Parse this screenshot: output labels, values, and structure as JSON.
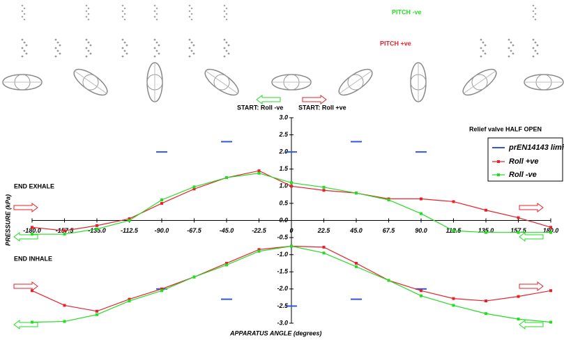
{
  "chart_data": {
    "type": "line",
    "annotations": {
      "pitch_neg": "PITCH -ve",
      "pitch_pos": "PITCH +ve",
      "start_neg": "START: Roll -ve",
      "start_pos": "START: Roll +ve",
      "valve": "Relief valve HALF OPEN",
      "end_exhale": "END EXHALE",
      "end_inhale": "END INHALE"
    },
    "x_label": "APPARATUS ANGLE (degrees)",
    "y_label": "PRESSURE (kPa)",
    "x": [
      -180,
      -157.5,
      -135,
      -112.5,
      -90,
      -67.5,
      -45,
      -22.5,
      0,
      22.5,
      45,
      67.5,
      90,
      112.5,
      135,
      157.5,
      180
    ],
    "xlim": [
      -180,
      180
    ],
    "xticks": [
      {
        "value": -180,
        "label": "-180.0"
      },
      -157.5,
      {
        "value": -135,
        "label": "-135.0"
      },
      -112.5,
      {
        "value": -90,
        "label": "-90.0"
      },
      -67.5,
      {
        "value": -45,
        "label": "-45.0"
      },
      -22.5,
      0,
      22.5,
      {
        "value": 45,
        "label": "45.0"
      },
      67.5,
      {
        "value": 90,
        "label": "90.0"
      },
      112.5,
      {
        "value": 135,
        "label": "135.0"
      },
      157.5,
      {
        "value": 180,
        "label": "180.0"
      }
    ],
    "ylim": [
      -3,
      3
    ],
    "yticks": [
      {
        "value": -3,
        "label": "-3.0"
      },
      -2.5,
      {
        "value": -2,
        "label": "-2.0"
      },
      -1.5,
      {
        "value": -1,
        "label": "-1.0"
      },
      -0.5,
      {
        "value": 0,
        "label": "0.0"
      },
      0.5,
      {
        "value": 1,
        "label": "1.0"
      },
      1.5,
      {
        "value": 2,
        "label": "2.0"
      },
      2.5,
      {
        "value": 3,
        "label": "3.0"
      }
    ],
    "limits": {
      "name": "prEN14143 limits",
      "color": "#3355dd",
      "x": [
        -90,
        -45,
        0,
        45,
        90,
        -90,
        -45,
        0,
        45,
        90
      ],
      "values": [
        2.0,
        2.3,
        2.0,
        2.3,
        2.0,
        -2.0,
        -2.3,
        -2.5,
        -2.3,
        -2.0
      ]
    },
    "series": [
      {
        "name": "Roll +ve",
        "color": "#e8202a",
        "exhale": [
          -0.2,
          -0.3,
          -0.15,
          0.05,
          0.5,
          0.92,
          1.25,
          1.45,
          1.0,
          0.88,
          0.8,
          0.63,
          0.63,
          0.55,
          0.3,
          0.08,
          -0.2
        ],
        "inhale": [
          -2.05,
          -2.48,
          -2.65,
          -2.3,
          -2.0,
          -1.65,
          -1.25,
          -0.85,
          -0.75,
          -0.78,
          -1.25,
          -1.75,
          -2.05,
          -2.28,
          -2.35,
          -2.22,
          -2.05
        ]
      },
      {
        "name": "Roll -ve",
        "color": "#22dd22",
        "exhale": [
          -0.4,
          -0.4,
          -0.25,
          0.0,
          0.6,
          0.98,
          1.25,
          1.38,
          1.1,
          0.97,
          0.8,
          0.6,
          0.2,
          -0.3,
          -0.35,
          -0.35,
          -0.35
        ],
        "inhale": [
          -2.97,
          -2.95,
          -2.75,
          -2.35,
          -2.05,
          -1.65,
          -1.3,
          -0.9,
          -0.75,
          -0.95,
          -1.35,
          -1.75,
          -2.2,
          -2.48,
          -2.72,
          -2.88,
          -2.97
        ]
      }
    ]
  }
}
